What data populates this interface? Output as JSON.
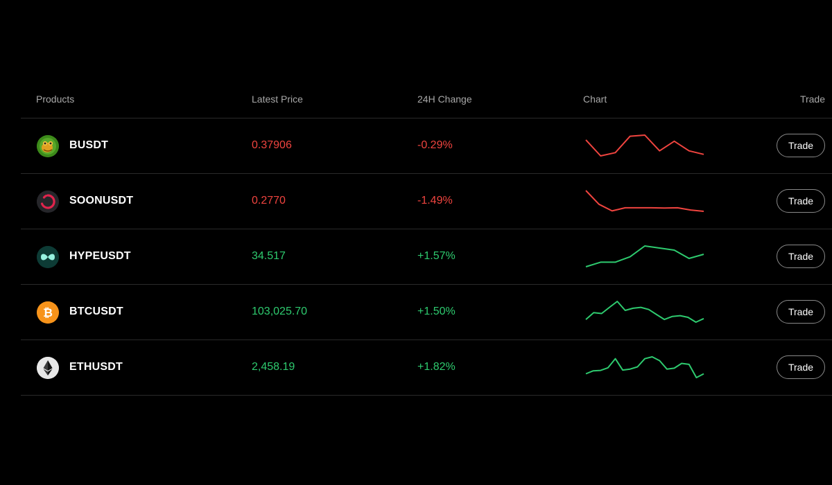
{
  "columns": {
    "products": "Products",
    "latest_price": "Latest Price",
    "change_24h": "24H Change",
    "chart": "Chart",
    "trade": "Trade"
  },
  "colors": {
    "up": "#2ecb6f",
    "down": "#f0443f"
  },
  "rows": [
    {
      "symbol": "BUSDT",
      "price": "0.37906",
      "change": "-0.29%",
      "direction": "down",
      "icon": "busdt-coin-icon",
      "trade_label": "Trade",
      "sparkline": [
        0.78,
        0.05,
        0.2,
        0.95,
        1.0,
        0.28,
        0.72,
        0.28,
        0.12
      ]
    },
    {
      "symbol": "SOONUSDT",
      "price": "0.2770",
      "change": "-1.49%",
      "direction": "down",
      "icon": "soon-coin-icon",
      "trade_label": "Trade",
      "sparkline": [
        1.0,
        0.38,
        0.08,
        0.22,
        0.22,
        0.22,
        0.21,
        0.22,
        0.12,
        0.06
      ]
    },
    {
      "symbol": "HYPEUSDT",
      "price": "34.517",
      "change": "+1.57%",
      "direction": "up",
      "icon": "hype-coin-icon",
      "trade_label": "Trade",
      "sparkline": [
        0.0,
        0.22,
        0.22,
        0.48,
        1.0,
        0.9,
        0.8,
        0.4,
        0.6
      ]
    },
    {
      "symbol": "BTCUSDT",
      "price": "103,025.70",
      "change": "+1.50%",
      "direction": "up",
      "icon": "bitcoin-icon",
      "trade_label": "Trade",
      "sparkline": [
        0.0,
        0.38,
        0.33,
        0.67,
        1.0,
        0.5,
        0.62,
        0.67,
        0.55,
        0.27,
        0.0,
        0.17,
        0.21,
        0.12,
        -0.15,
        0.05
      ]
    },
    {
      "symbol": "ETHUSDT",
      "price": "2,458.19",
      "change": "+1.82%",
      "direction": "up",
      "icon": "ethereum-icon",
      "trade_label": "Trade",
      "sparkline": [
        0.0,
        0.16,
        0.18,
        0.32,
        0.8,
        0.2,
        0.25,
        0.37,
        0.8,
        0.9,
        0.7,
        0.25,
        0.3,
        0.55,
        0.5,
        -0.2,
        0.0
      ]
    }
  ]
}
